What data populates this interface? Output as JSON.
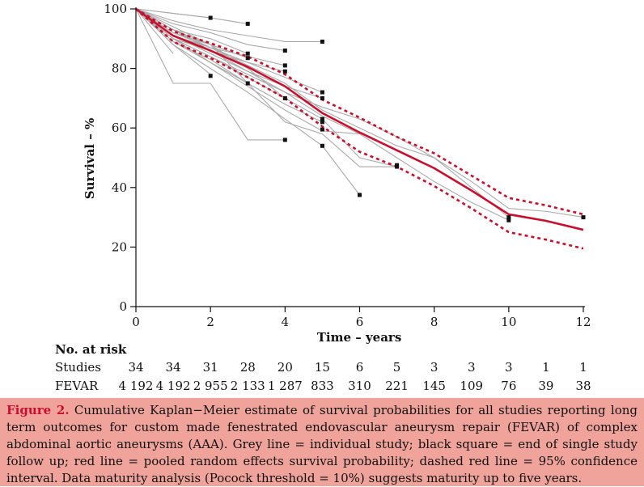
{
  "chart_data": {
    "type": "line",
    "xlabel": "Time – years",
    "ylabel": "Survival – %",
    "xlim": [
      0,
      12
    ],
    "ylim": [
      0,
      100
    ],
    "x_ticks": [
      0,
      2,
      4,
      6,
      8,
      10,
      12
    ],
    "y_ticks": [
      0,
      20,
      40,
      60,
      80,
      100
    ],
    "grid": false,
    "colors": {
      "pooled": "#c8102e",
      "studies": "#a9a9a9",
      "markers": "#111111",
      "caption_bg": "#f0a39a"
    },
    "pooled": {
      "x": [
        0,
        1,
        2,
        3,
        4,
        5,
        6,
        7,
        8,
        9,
        10,
        11,
        12
      ],
      "y": [
        100,
        91,
        86,
        80.5,
        74,
        65,
        58.5,
        52.5,
        46.5,
        39,
        31,
        28.8,
        25.8
      ]
    },
    "ci_upper": {
      "x": [
        0,
        1,
        2,
        3,
        4,
        5,
        6,
        7,
        8,
        9,
        10,
        11,
        12
      ],
      "y": [
        100,
        92.5,
        88.5,
        84,
        78,
        69.5,
        63.5,
        57,
        51.5,
        44,
        36.5,
        34,
        31
      ]
    },
    "ci_lower": {
      "x": [
        0,
        1,
        2,
        3,
        4,
        5,
        6,
        7,
        8,
        9,
        10,
        11,
        12
      ],
      "y": [
        100,
        89,
        83.5,
        77,
        70,
        60.5,
        52,
        47,
        40.5,
        33,
        25,
        22.5,
        19.5
      ]
    },
    "studies": [
      {
        "x": [
          0,
          2,
          3
        ],
        "y": [
          100,
          97,
          95
        ]
      },
      {
        "x": [
          0,
          2
        ],
        "y": [
          100,
          97
        ]
      },
      {
        "x": [
          0,
          1,
          2,
          3,
          4,
          5
        ],
        "y": [
          100,
          96,
          93,
          91,
          89,
          89
        ]
      },
      {
        "x": [
          0,
          1,
          2,
          3,
          4
        ],
        "y": [
          100,
          95,
          92,
          88,
          86
        ]
      },
      {
        "x": [
          0,
          1,
          2,
          3
        ],
        "y": [
          100,
          93,
          90,
          85
        ]
      },
      {
        "x": [
          0,
          1,
          2,
          3
        ],
        "y": [
          100,
          92,
          88,
          83.5
        ]
      },
      {
        "x": [
          0,
          1,
          2,
          3,
          4
        ],
        "y": [
          100,
          91,
          87,
          84,
          81
        ]
      },
      {
        "x": [
          0,
          1,
          2,
          3,
          4
        ],
        "y": [
          100,
          90,
          86,
          82,
          79
        ]
      },
      {
        "x": [
          0,
          1,
          2,
          3,
          4
        ],
        "y": [
          100,
          93,
          88,
          80,
          70
        ]
      },
      {
        "x": [
          0,
          2,
          3
        ],
        "y": [
          100,
          88,
          75
        ]
      },
      {
        "x": [
          0,
          1,
          2
        ],
        "y": [
          100,
          88,
          78
        ]
      },
      {
        "x": [
          0,
          1
        ],
        "y": [
          100,
          85
        ]
      },
      {
        "x": [
          0,
          1,
          2,
          3,
          4,
          5
        ],
        "y": [
          100,
          92,
          87,
          82,
          77,
          72
        ]
      },
      {
        "x": [
          0,
          1,
          2,
          3,
          4,
          5
        ],
        "y": [
          100,
          91,
          85,
          79,
          74,
          70
        ]
      },
      {
        "x": [
          0,
          1,
          2,
          3,
          4,
          5,
          6,
          7
        ],
        "y": [
          100,
          90,
          84,
          77,
          70,
          63,
          50,
          47
        ]
      },
      {
        "x": [
          0,
          1,
          2,
          3,
          4,
          5
        ],
        "y": [
          100,
          90,
          82,
          75,
          68,
          62
        ]
      },
      {
        "x": [
          0,
          1,
          2,
          3,
          4,
          5,
          6
        ],
        "y": [
          100,
          89,
          82,
          74,
          66,
          59,
          58
        ]
      },
      {
        "x": [
          0,
          1,
          2,
          3,
          4,
          5,
          6
        ],
        "y": [
          100,
          88,
          80,
          72,
          63,
          54,
          37.5
        ]
      },
      {
        "x": [
          0,
          1,
          2,
          3,
          4
        ],
        "y": [
          100,
          75,
          75,
          56,
          56
        ]
      },
      {
        "x": [
          0,
          1,
          2,
          3,
          4,
          5,
          6,
          7
        ],
        "y": [
          100,
          89,
          83,
          75,
          62,
          58,
          47,
          47
        ]
      },
      {
        "x": [
          0,
          1,
          2,
          3,
          4,
          5,
          6,
          7,
          8,
          9,
          10
        ],
        "y": [
          100,
          93,
          86,
          79,
          72,
          67,
          63,
          57,
          50,
          40,
          30
        ]
      },
      {
        "x": [
          0,
          1,
          2,
          3,
          4,
          5,
          6,
          7,
          8,
          9,
          10,
          11,
          12
        ],
        "y": [
          100,
          93,
          87,
          81,
          75,
          66,
          60,
          54,
          50,
          42,
          33,
          32,
          30
        ]
      },
      {
        "x": [
          0,
          1,
          2,
          3,
          4,
          5,
          6,
          7,
          8,
          9,
          10
        ],
        "y": [
          100,
          90,
          84,
          78,
          72,
          64,
          58,
          50,
          42,
          35,
          29
        ]
      }
    ],
    "end_markers": [
      {
        "x": 2,
        "y": 97
      },
      {
        "x": 3,
        "y": 95
      },
      {
        "x": 5,
        "y": 89
      },
      {
        "x": 4,
        "y": 86
      },
      {
        "x": 3,
        "y": 85
      },
      {
        "x": 3,
        "y": 83.5
      },
      {
        "x": 4,
        "y": 81
      },
      {
        "x": 4,
        "y": 79
      },
      {
        "x": 2,
        "y": 77.5
      },
      {
        "x": 3,
        "y": 75
      },
      {
        "x": 5,
        "y": 72
      },
      {
        "x": 5,
        "y": 70
      },
      {
        "x": 4,
        "y": 70
      },
      {
        "x": 5,
        "y": 63
      },
      {
        "x": 5,
        "y": 62
      },
      {
        "x": 5,
        "y": 59.5
      },
      {
        "x": 4,
        "y": 56
      },
      {
        "x": 5,
        "y": 54
      },
      {
        "x": 7,
        "y": 47.5
      },
      {
        "x": 7,
        "y": 47
      },
      {
        "x": 6,
        "y": 37.5
      },
      {
        "x": 10,
        "y": 30
      },
      {
        "x": 10,
        "y": 29
      },
      {
        "x": 12,
        "y": 30
      }
    ],
    "risk_table": {
      "header": "No. at risk",
      "rows": [
        {
          "label": "Studies",
          "values": [
            "34",
            "34",
            "31",
            "28",
            "20",
            "15",
            "6",
            "5",
            "3",
            "3",
            "3",
            "1",
            "1"
          ]
        },
        {
          "label": "FEVAR",
          "values": [
            "4 192",
            "4 192",
            "2 955",
            "2 133",
            "1 287",
            "833",
            "310",
            "221",
            "145",
            "109",
            "76",
            "39",
            "38"
          ]
        }
      ]
    }
  },
  "caption": {
    "label": "Figure 2.",
    "text": "Cumulative Kaplan−Meier estimate of survival probabilities for all studies reporting long term outcomes for custom made fenestrated endovascular aneurysm repair (FEVAR) of complex abdominal aortic aneurysms (AAA). Grey line = individual study; black square = end of single study follow up; red line = pooled random effects survival probability; dashed red line = 95% confidence interval. Data maturity analysis (Pocock threshold = 10%) suggests maturity up to five years."
  }
}
